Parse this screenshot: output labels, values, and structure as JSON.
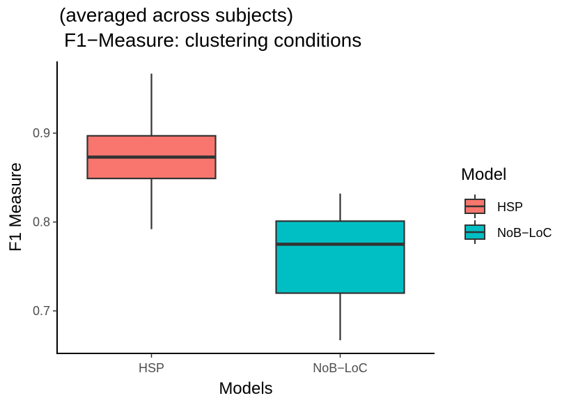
{
  "chart_data": {
    "type": "box",
    "title_line1": "(averaged across subjects)",
    "title_line2": "F1−Measure: clustering conditions",
    "xlabel": "Models",
    "ylabel": "F1 Measure",
    "categories": [
      "HSP",
      "NoB−LoC"
    ],
    "ylim": [
      0.65,
      0.98
    ],
    "yticks": [
      0.7,
      0.8,
      0.9
    ],
    "ytick_labels": [
      "0.7",
      "0.8",
      "0.9"
    ],
    "boxes": [
      {
        "category": "HSP",
        "min": 0.792,
        "q1": 0.849,
        "median": 0.873,
        "q3": 0.897,
        "max": 0.967,
        "color": "#F8766D"
      },
      {
        "category": "NoB−LoC",
        "min": 0.667,
        "q1": 0.72,
        "median": 0.775,
        "q3": 0.801,
        "max": 0.832,
        "color": "#00BFC4"
      }
    ],
    "legend": {
      "title": "Model",
      "position": "right",
      "entries": [
        {
          "label": "HSP",
          "color": "#F8766D"
        },
        {
          "label": "NoB−LoC",
          "color": "#00BFC4"
        }
      ]
    }
  }
}
